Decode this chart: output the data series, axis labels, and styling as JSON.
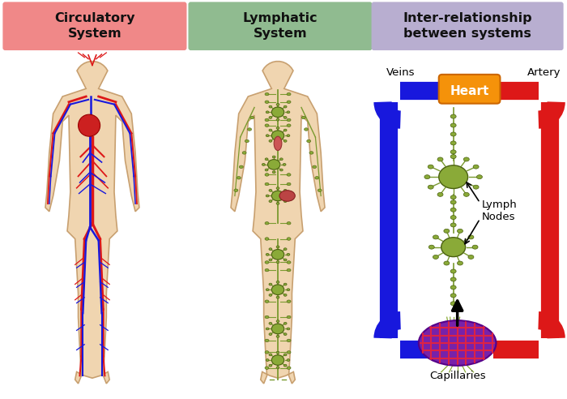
{
  "bg_color": "#ffffff",
  "panel1_title": "Circulatory\nSystem",
  "panel2_title": "Lymphatic\nSystem",
  "panel3_title": "Inter-relationship\nbetween systems",
  "panel1_bg": "#f08888",
  "panel2_bg": "#90bb90",
  "panel3_bg": "#b8aed0",
  "heart_color": "#f5920a",
  "heart_text": "Heart",
  "vein_color": "#1818dd",
  "artery_color": "#dd1818",
  "lymph_color": "#7a9a30",
  "lymph_node_fill": "#8aaa38",
  "capillary_purple": "#7722aa",
  "capillary_red": "#dd2244",
  "body_fill": "#f0d5b0",
  "body_edge": "#c8a070",
  "text_dark": "#111111",
  "veins_label": "Veins",
  "artery_label": "Artery",
  "lymph_nodes_label": "Lymph\nNodes",
  "capillaries_label": "Capillaries"
}
